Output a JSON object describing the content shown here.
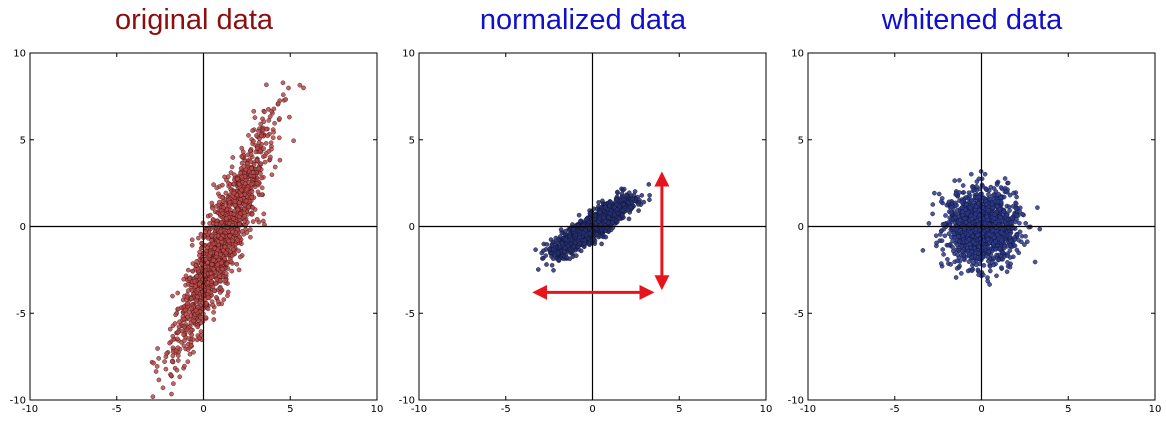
{
  "chart_data": [
    {
      "type": "scatter",
      "title": "original data",
      "title_color": "#8b0f0f",
      "point_fill": "#b84a4a",
      "point_stroke": "#3a0a0a",
      "xlim": [
        -10,
        10
      ],
      "ylim": [
        -10,
        10
      ],
      "xticks": [
        "-10",
        "-5",
        "0",
        "5",
        "10"
      ],
      "yticks": [
        "10",
        "5",
        "0",
        "-5",
        "-10"
      ],
      "grid": false,
      "axis_lines_through_origin": true,
      "distribution": {
        "mean_x": 1.0,
        "mean_y": -1.0,
        "std_major": 3.5,
        "std_minor": 0.55,
        "angle_deg": 68,
        "n_points": 1500
      }
    },
    {
      "type": "scatter",
      "title": "normalized data",
      "title_color": "#1010cc",
      "point_fill": "#27306e",
      "point_stroke": "#0c1030",
      "xlim": [
        -10,
        10
      ],
      "ylim": [
        -10,
        10
      ],
      "xticks": [
        "-10",
        "-5",
        "0",
        "5",
        "10"
      ],
      "yticks": [
        "10",
        "5",
        "0",
        "-5",
        "-10"
      ],
      "grid": false,
      "axis_lines_through_origin": true,
      "distribution": {
        "mean_x": 0.0,
        "mean_y": 0.0,
        "std_major": 1.3,
        "std_minor": 0.32,
        "angle_deg": 35,
        "n_points": 1500
      },
      "annotations": [
        {
          "type": "double-arrow",
          "direction": "vertical",
          "color": "#e8141c",
          "x": 4.0,
          "y_from": -3.5,
          "y_to": 3.0
        },
        {
          "type": "double-arrow",
          "direction": "horizontal",
          "color": "#e8141c",
          "y": -3.8,
          "x_from": -3.3,
          "x_to": 3.4
        }
      ]
    },
    {
      "type": "scatter",
      "title": "whitened data",
      "title_color": "#1010cc",
      "point_fill": "#2b3a8a",
      "point_stroke": "#0c1030",
      "xlim": [
        -10,
        10
      ],
      "ylim": [
        -10,
        10
      ],
      "xticks": [
        "-10",
        "-5",
        "0",
        "5",
        "10"
      ],
      "yticks": [
        "10",
        "5",
        "0",
        "-5",
        "-10"
      ],
      "grid": false,
      "axis_lines_through_origin": true,
      "distribution": {
        "mean_x": 0.0,
        "mean_y": 0.0,
        "std_major": 1.0,
        "std_minor": 1.0,
        "angle_deg": 0,
        "n_points": 1500
      }
    }
  ]
}
